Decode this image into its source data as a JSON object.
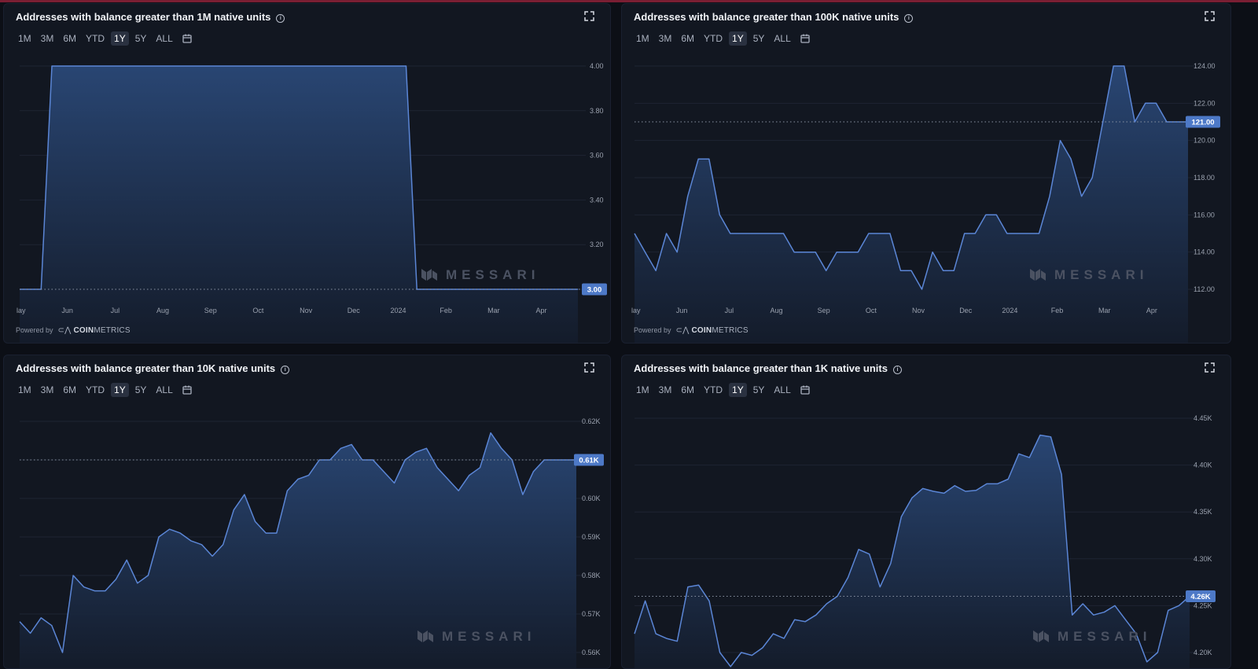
{
  "ranges": [
    "1M",
    "3M",
    "6M",
    "YTD",
    "1Y",
    "5Y",
    "ALL"
  ],
  "active_range": "1Y",
  "powered_by": "Powered by",
  "coinmetrics": {
    "a": "COIN",
    "b": "METRICS"
  },
  "watermark": "MESSARI",
  "colors": {
    "line": "#5b86d6",
    "label_bg": "#4d79c7",
    "grid": "#1e2532",
    "fill_top": "#2a4877",
    "fill_bottom": "#141c2b"
  },
  "chart_data": [
    {
      "type": "area",
      "title": "Addresses with balance greater than 1M native units",
      "ylim": [
        3.0,
        4.0
      ],
      "yticks": [
        "4.00",
        "3.80",
        "3.60",
        "3.40",
        "3.20",
        "3.00"
      ],
      "ytick_values": [
        4.0,
        3.8,
        3.6,
        3.4,
        3.2,
        3.0
      ],
      "xticks": [
        "lay",
        "Jun",
        "Jul",
        "Aug",
        "Sep",
        "Oct",
        "Nov",
        "Dec",
        "2024",
        "Feb",
        "Mar",
        "Apr"
      ],
      "last_value_label": "3.00",
      "last_value": 3.0,
      "values": [
        3,
        3,
        3,
        4,
        4,
        4,
        4,
        4,
        4,
        4,
        4,
        4,
        4,
        4,
        4,
        4,
        4,
        4,
        4,
        4,
        4,
        4,
        4,
        4,
        4,
        4,
        4,
        4,
        4,
        4,
        4,
        4,
        4,
        4,
        4,
        4,
        4,
        3,
        3,
        3,
        3,
        3,
        3,
        3,
        3,
        3,
        3,
        3,
        3,
        3,
        3,
        3,
        3
      ]
    },
    {
      "type": "area",
      "title": "Addresses with balance greater than 100K native units",
      "ylim": [
        112,
        124
      ],
      "yticks": [
        "124.00",
        "122.00",
        "120.00",
        "118.00",
        "116.00",
        "114.00",
        "112.00"
      ],
      "ytick_values": [
        124,
        122,
        120,
        118,
        116,
        114,
        112
      ],
      "xticks": [
        "lay",
        "Jun",
        "Jul",
        "Aug",
        "Sep",
        "Oct",
        "Nov",
        "Dec",
        "2024",
        "Feb",
        "Mar",
        "Apr"
      ],
      "last_value_label": "121.00",
      "last_value": 121,
      "values": [
        115,
        114,
        113,
        115,
        114,
        117,
        119,
        119,
        116,
        115,
        115,
        115,
        115,
        115,
        115,
        114,
        114,
        114,
        113,
        114,
        114,
        114,
        115,
        115,
        115,
        113,
        113,
        112,
        114,
        113,
        113,
        115,
        115,
        116,
        116,
        115,
        115,
        115,
        115,
        117,
        120,
        119,
        117,
        118,
        121,
        124,
        124,
        121,
        122,
        122,
        121,
        121,
        121
      ]
    },
    {
      "type": "area",
      "title": "Addresses with balance greater than 10K native units",
      "ylim": [
        0.56,
        0.62
      ],
      "yticks": [
        "0.62K",
        "0.61K",
        "0.60K",
        "0.59K",
        "0.58K",
        "0.57K",
        "0.56K"
      ],
      "ytick_values": [
        0.62,
        0.61,
        0.6,
        0.59,
        0.58,
        0.57,
        0.56
      ],
      "xticks": [],
      "last_value_label": "0.61K",
      "last_value": 0.61,
      "values": [
        0.568,
        0.565,
        0.569,
        0.567,
        0.56,
        0.58,
        0.577,
        0.576,
        0.576,
        0.579,
        0.584,
        0.578,
        0.58,
        0.59,
        0.592,
        0.591,
        0.589,
        0.588,
        0.585,
        0.588,
        0.597,
        0.601,
        0.594,
        0.591,
        0.591,
        0.602,
        0.605,
        0.606,
        0.61,
        0.61,
        0.613,
        0.614,
        0.61,
        0.61,
        0.607,
        0.604,
        0.61,
        0.612,
        0.613,
        0.608,
        0.605,
        0.602,
        0.606,
        0.608,
        0.617,
        0.613,
        0.61,
        0.601,
        0.607,
        0.61,
        0.61,
        0.61,
        0.61
      ]
    },
    {
      "type": "area",
      "title": "Addresses with balance greater than 1K native units",
      "ylim": [
        4.2,
        4.45
      ],
      "yticks": [
        "4.45K",
        "4.40K",
        "4.35K",
        "4.30K",
        "4.25K",
        "4.20K"
      ],
      "ytick_values": [
        4.45,
        4.4,
        4.35,
        4.3,
        4.25,
        4.2
      ],
      "xticks": [],
      "last_value_label": "4.26K",
      "last_value": 4.26,
      "values": [
        4.22,
        4.255,
        4.22,
        4.215,
        4.212,
        4.27,
        4.272,
        4.255,
        4.2,
        4.185,
        4.2,
        4.197,
        4.205,
        4.22,
        4.215,
        4.235,
        4.233,
        4.24,
        4.252,
        4.26,
        4.28,
        4.31,
        4.305,
        4.27,
        4.295,
        4.345,
        4.365,
        4.375,
        4.372,
        4.37,
        4.378,
        4.372,
        4.373,
        4.38,
        4.38,
        4.385,
        4.412,
        4.408,
        4.432,
        4.43,
        4.39,
        4.24,
        4.252,
        4.24,
        4.243,
        4.25,
        4.235,
        4.22,
        4.19,
        4.2,
        4.245,
        4.25,
        4.26
      ]
    }
  ]
}
